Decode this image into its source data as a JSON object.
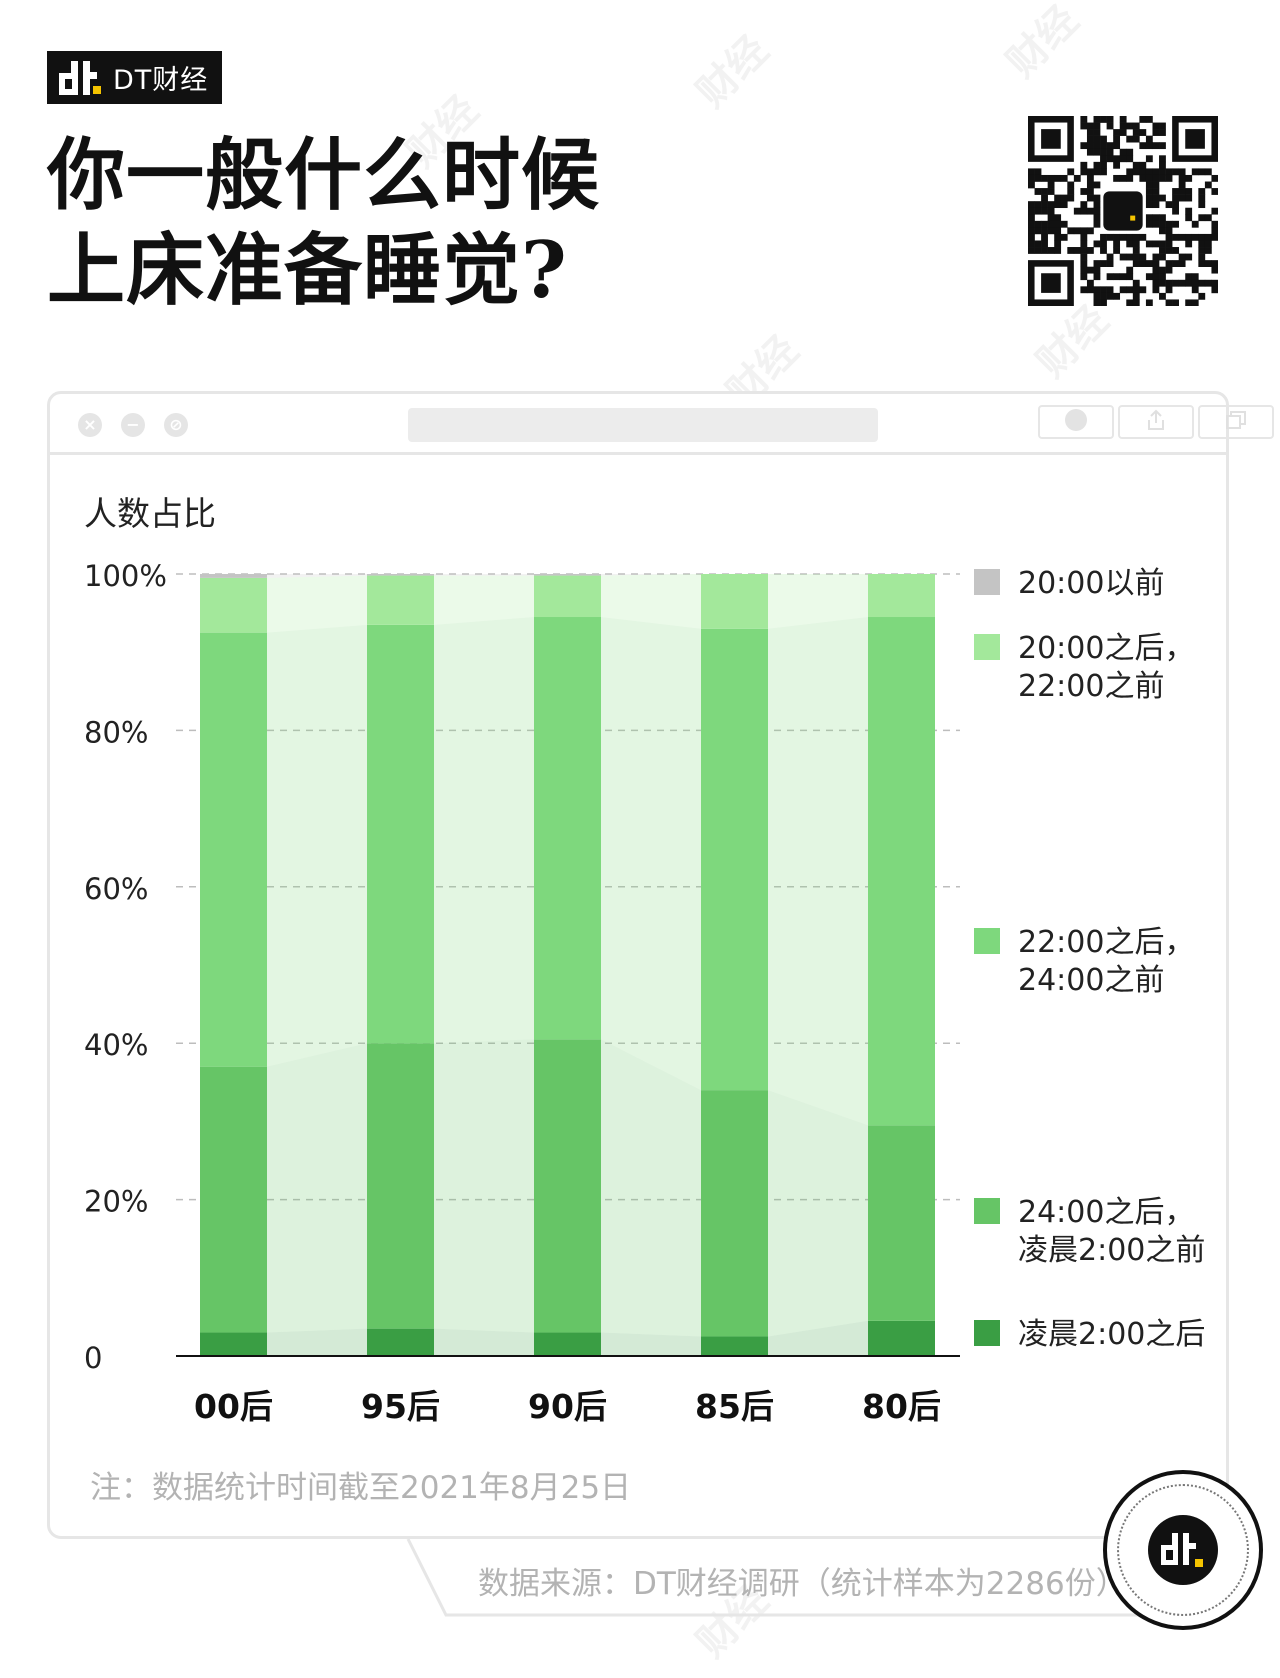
{
  "brand": {
    "name": "DT财经",
    "watermark": "财经"
  },
  "title": {
    "line1": "你一般什么时候",
    "line2": "上床准备睡觉?"
  },
  "icons": {
    "qr": "qr-code-icon",
    "logo": "dt-logo-icon",
    "close": "close-icon",
    "minimize": "minimize-icon",
    "block": "block-icon",
    "record": "record-icon",
    "share": "share-icon",
    "window": "window-icon"
  },
  "colors": {
    "before20": "#c4c4c4",
    "s20_22": "#a3e89b",
    "s22_24": "#7ed87d",
    "s24_02": "#66c566",
    "after02": "#3a9e44",
    "accent": "#f5c400"
  },
  "chart_data": {
    "type": "bar",
    "stacked": true,
    "ylabel": "人数占比",
    "ylim": [
      0,
      100
    ],
    "yticks": [
      0,
      20,
      40,
      60,
      80,
      100
    ],
    "ytick_labels": [
      "0",
      "20%",
      "40%",
      "60%",
      "80%",
      "100%"
    ],
    "categories": [
      "00后",
      "95后",
      "90后",
      "85后",
      "80后"
    ],
    "series": [
      {
        "name": "凌晨2:00之后",
        "color": "#3a9e44",
        "values": [
          3,
          3.5,
          3,
          2.5,
          4.5
        ]
      },
      {
        "name": "24:00之后，凌晨2:00之前",
        "legend_lines": [
          "24:00之后，",
          "凌晨2:00之前"
        ],
        "color": "#66c566",
        "values": [
          34,
          36.5,
          37.5,
          31.5,
          25
        ]
      },
      {
        "name": "22:00之后，24:00之前",
        "legend_lines": [
          "22:00之后，",
          "24:00之前"
        ],
        "color": "#7ed87d",
        "values": [
          55.5,
          53.5,
          54,
          59,
          65
        ]
      },
      {
        "name": "20:00之后，22:00之前",
        "legend_lines": [
          "20:00之后，",
          "22:00之前"
        ],
        "color": "#a3e89b",
        "values": [
          7,
          6.3,
          5.3,
          7,
          5.5
        ]
      },
      {
        "name": "20:00以前",
        "legend_lines": [
          "20:00以前"
        ],
        "color": "#c4c4c4",
        "values": [
          0.5,
          0.2,
          0.2,
          0,
          0
        ]
      }
    ],
    "grid": true,
    "legend": "right"
  },
  "note": "注：数据统计时间截至2021年8月25日",
  "source": "数据来源：DT财经调研（统计样本为2286份）"
}
